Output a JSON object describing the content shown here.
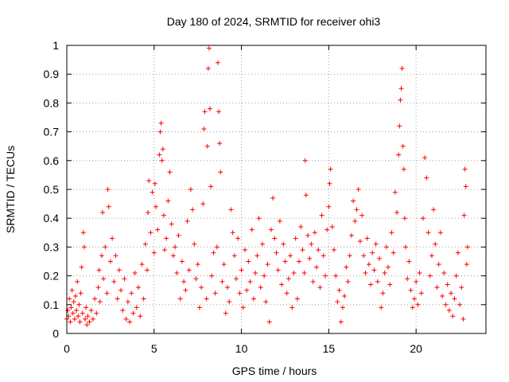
{
  "chart_data": {
    "type": "scatter",
    "title": "Day 180 of 2024, SRMTID for receiver ohi3",
    "xlabel": "GPS time / hours",
    "ylabel": "SRMTID / TECUs",
    "xlim": [
      0,
      24
    ],
    "ylim": [
      0,
      1
    ],
    "xticks": [
      0,
      5,
      10,
      15,
      20
    ],
    "xtick_labels": [
      "0",
      "5",
      "10",
      "15",
      "20"
    ],
    "yticks": [
      0,
      0.1,
      0.2,
      0.3,
      0.4,
      0.5,
      0.6,
      0.7,
      0.8,
      0.9,
      1
    ],
    "ytick_labels": [
      "0",
      "0.1",
      "0.2",
      "0.3",
      "0.4",
      "0.5",
      "0.6",
      "0.7",
      "0.8",
      "0.9",
      "1"
    ],
    "grid": true,
    "marker": "+",
    "color": "#ff0000",
    "series": [
      {
        "name": "SRMTID",
        "points": [
          [
            0.0,
            0.05
          ],
          [
            0.05,
            0.08
          ],
          [
            0.1,
            0.06
          ],
          [
            0.15,
            0.12
          ],
          [
            0.2,
            0.04
          ],
          [
            0.25,
            0.09
          ],
          [
            0.3,
            0.15
          ],
          [
            0.35,
            0.07
          ],
          [
            0.4,
            0.11
          ],
          [
            0.45,
            0.05
          ],
          [
            0.5,
            0.13
          ],
          [
            0.55,
            0.08
          ],
          [
            0.6,
            0.18
          ],
          [
            0.65,
            0.06
          ],
          [
            0.7,
            0.1
          ],
          [
            0.75,
            0.04
          ],
          [
            0.8,
            0.14
          ],
          [
            0.85,
            0.23
          ],
          [
            0.9,
            0.07
          ],
          [
            0.95,
            0.35
          ],
          [
            1.0,
            0.3
          ],
          [
            1.05,
            0.05
          ],
          [
            1.1,
            0.09
          ],
          [
            1.15,
            0.03
          ],
          [
            1.2,
            0.06
          ],
          [
            1.3,
            0.04
          ],
          [
            1.4,
            0.08
          ],
          [
            1.5,
            0.05
          ],
          [
            1.6,
            0.12
          ],
          [
            1.7,
            0.07
          ],
          [
            1.8,
            0.16
          ],
          [
            1.85,
            0.22
          ],
          [
            1.9,
            0.11
          ],
          [
            2.0,
            0.27
          ],
          [
            2.05,
            0.42
          ],
          [
            2.1,
            0.19
          ],
          [
            2.2,
            0.3
          ],
          [
            2.3,
            0.14
          ],
          [
            2.35,
            0.5
          ],
          [
            2.4,
            0.44
          ],
          [
            2.5,
            0.25
          ],
          [
            2.6,
            0.33
          ],
          [
            2.7,
            0.18
          ],
          [
            2.8,
            0.27
          ],
          [
            2.9,
            0.12
          ],
          [
            3.0,
            0.22
          ],
          [
            3.1,
            0.15
          ],
          [
            3.2,
            0.08
          ],
          [
            3.3,
            0.19
          ],
          [
            3.4,
            0.05
          ],
          [
            3.5,
            0.11
          ],
          [
            3.6,
            0.04
          ],
          [
            3.7,
            0.14
          ],
          [
            3.8,
            0.07
          ],
          [
            3.9,
            0.21
          ],
          [
            4.0,
            0.09
          ],
          [
            4.1,
            0.16
          ],
          [
            4.2,
            0.06
          ],
          [
            4.3,
            0.24
          ],
          [
            4.4,
            0.12
          ],
          [
            4.5,
            0.31
          ],
          [
            4.6,
            0.22
          ],
          [
            4.65,
            0.42
          ],
          [
            4.7,
            0.53
          ],
          [
            4.8,
            0.35
          ],
          [
            4.9,
            0.49
          ],
          [
            5.0,
            0.28
          ],
          [
            5.05,
            0.52
          ],
          [
            5.1,
            0.44
          ],
          [
            5.2,
            0.36
          ],
          [
            5.3,
            0.62
          ],
          [
            5.35,
            0.7
          ],
          [
            5.4,
            0.73
          ],
          [
            5.45,
            0.6
          ],
          [
            5.5,
            0.64
          ],
          [
            5.55,
            0.41
          ],
          [
            5.6,
            0.29
          ],
          [
            5.7,
            0.33
          ],
          [
            5.8,
            0.46
          ],
          [
            5.9,
            0.56
          ],
          [
            6.0,
            0.38
          ],
          [
            6.1,
            0.27
          ],
          [
            6.2,
            0.3
          ],
          [
            6.3,
            0.21
          ],
          [
            6.4,
            0.34
          ],
          [
            6.5,
            0.12
          ],
          [
            6.6,
            0.25
          ],
          [
            6.7,
            0.18
          ],
          [
            6.8,
            0.15
          ],
          [
            6.9,
            0.39
          ],
          [
            7.0,
            0.22
          ],
          [
            7.1,
            0.5
          ],
          [
            7.2,
            0.43
          ],
          [
            7.3,
            0.31
          ],
          [
            7.4,
            0.19
          ],
          [
            7.5,
            0.24
          ],
          [
            7.6,
            0.09
          ],
          [
            7.7,
            0.16
          ],
          [
            7.8,
            0.45
          ],
          [
            7.85,
            0.71
          ],
          [
            7.9,
            0.77
          ],
          [
            8.0,
            0.12
          ],
          [
            8.05,
            0.65
          ],
          [
            8.1,
            0.92
          ],
          [
            8.15,
            0.99
          ],
          [
            8.2,
            0.78
          ],
          [
            8.25,
            0.51
          ],
          [
            8.3,
            0.2
          ],
          [
            8.4,
            0.28
          ],
          [
            8.5,
            0.14
          ],
          [
            8.6,
            0.3
          ],
          [
            8.65,
            0.94
          ],
          [
            8.7,
            0.77
          ],
          [
            8.75,
            0.66
          ],
          [
            8.8,
            0.56
          ],
          [
            8.9,
            0.18
          ],
          [
            9.0,
            0.24
          ],
          [
            9.1,
            0.07
          ],
          [
            9.2,
            0.16
          ],
          [
            9.3,
            0.11
          ],
          [
            9.4,
            0.43
          ],
          [
            9.5,
            0.35
          ],
          [
            9.6,
            0.27
          ],
          [
            9.7,
            0.19
          ],
          [
            9.8,
            0.33
          ],
          [
            9.9,
            0.14
          ],
          [
            10.0,
            0.22
          ],
          [
            10.1,
            0.09
          ],
          [
            10.2,
            0.29
          ],
          [
            10.3,
            0.15
          ],
          [
            10.4,
            0.25
          ],
          [
            10.5,
            0.18
          ],
          [
            10.6,
            0.36
          ],
          [
            10.7,
            0.12
          ],
          [
            10.8,
            0.21
          ],
          [
            10.9,
            0.27
          ],
          [
            11.0,
            0.4
          ],
          [
            11.1,
            0.16
          ],
          [
            11.2,
            0.31
          ],
          [
            11.3,
            0.2
          ],
          [
            11.4,
            0.11
          ],
          [
            11.5,
            0.24
          ],
          [
            11.6,
            0.04
          ],
          [
            11.7,
            0.36
          ],
          [
            11.8,
            0.47
          ],
          [
            11.9,
            0.33
          ],
          [
            12.0,
            0.28
          ],
          [
            12.1,
            0.22
          ],
          [
            12.2,
            0.39
          ],
          [
            12.3,
            0.17
          ],
          [
            12.4,
            0.31
          ],
          [
            12.5,
            0.25
          ],
          [
            12.6,
            0.14
          ],
          [
            12.7,
            0.19
          ],
          [
            12.8,
            0.27
          ],
          [
            12.9,
            0.09
          ],
          [
            13.0,
            0.21
          ],
          [
            13.1,
            0.33
          ],
          [
            13.2,
            0.12
          ],
          [
            13.3,
            0.25
          ],
          [
            13.4,
            0.37
          ],
          [
            13.5,
            0.29
          ],
          [
            13.6,
            0.21
          ],
          [
            13.65,
            0.6
          ],
          [
            13.7,
            0.48
          ],
          [
            13.8,
            0.34
          ],
          [
            13.9,
            0.26
          ],
          [
            14.0,
            0.31
          ],
          [
            14.1,
            0.18
          ],
          [
            14.2,
            0.35
          ],
          [
            14.3,
            0.23
          ],
          [
            14.4,
            0.29
          ],
          [
            14.5,
            0.16
          ],
          [
            14.6,
            0.41
          ],
          [
            14.7,
            0.27
          ],
          [
            14.8,
            0.2
          ],
          [
            14.9,
            0.36
          ],
          [
            15.0,
            0.44
          ],
          [
            15.05,
            0.52
          ],
          [
            15.1,
            0.57
          ],
          [
            15.2,
            0.37
          ],
          [
            15.3,
            0.29
          ],
          [
            15.4,
            0.2
          ],
          [
            15.5,
            0.11
          ],
          [
            15.6,
            0.15
          ],
          [
            15.7,
            0.04
          ],
          [
            15.8,
            0.09
          ],
          [
            15.9,
            0.13
          ],
          [
            16.0,
            0.23
          ],
          [
            16.1,
            0.18
          ],
          [
            16.2,
            0.27
          ],
          [
            16.3,
            0.34
          ],
          [
            16.4,
            0.46
          ],
          [
            16.5,
            0.39
          ],
          [
            16.6,
            0.43
          ],
          [
            16.7,
            0.5
          ],
          [
            16.8,
            0.32
          ],
          [
            16.9,
            0.41
          ],
          [
            17.0,
            0.27
          ],
          [
            17.1,
            0.21
          ],
          [
            17.2,
            0.33
          ],
          [
            17.3,
            0.24
          ],
          [
            17.4,
            0.17
          ],
          [
            17.5,
            0.28
          ],
          [
            17.6,
            0.22
          ],
          [
            17.7,
            0.31
          ],
          [
            17.8,
            0.18
          ],
          [
            17.9,
            0.26
          ],
          [
            18.0,
            0.09
          ],
          [
            18.1,
            0.14
          ],
          [
            18.2,
            0.21
          ],
          [
            18.3,
            0.3
          ],
          [
            18.4,
            0.23
          ],
          [
            18.5,
            0.17
          ],
          [
            18.6,
            0.35
          ],
          [
            18.7,
            0.28
          ],
          [
            18.8,
            0.49
          ],
          [
            18.9,
            0.42
          ],
          [
            19.0,
            0.62
          ],
          [
            19.05,
            0.72
          ],
          [
            19.1,
            0.81
          ],
          [
            19.15,
            0.85
          ],
          [
            19.2,
            0.92
          ],
          [
            19.25,
            0.65
          ],
          [
            19.3,
            0.57
          ],
          [
            19.35,
            0.4
          ],
          [
            19.4,
            0.3
          ],
          [
            19.5,
            0.19
          ],
          [
            19.6,
            0.25
          ],
          [
            19.7,
            0.15
          ],
          [
            19.8,
            0.09
          ],
          [
            19.9,
            0.12
          ],
          [
            20.0,
            0.18
          ],
          [
            20.1,
            0.1
          ],
          [
            20.2,
            0.21
          ],
          [
            20.3,
            0.14
          ],
          [
            20.4,
            0.4
          ],
          [
            20.5,
            0.61
          ],
          [
            20.6,
            0.54
          ],
          [
            20.7,
            0.35
          ],
          [
            20.8,
            0.2
          ],
          [
            20.9,
            0.27
          ],
          [
            21.0,
            0.43
          ],
          [
            21.1,
            0.31
          ],
          [
            21.2,
            0.16
          ],
          [
            21.3,
            0.24
          ],
          [
            21.4,
            0.35
          ],
          [
            21.5,
            0.13
          ],
          [
            21.6,
            0.21
          ],
          [
            21.7,
            0.1
          ],
          [
            21.8,
            0.17
          ],
          [
            21.9,
            0.08
          ],
          [
            22.0,
            0.14
          ],
          [
            22.1,
            0.06
          ],
          [
            22.2,
            0.12
          ],
          [
            22.3,
            0.2
          ],
          [
            22.4,
            0.28
          ],
          [
            22.5,
            0.1
          ],
          [
            22.6,
            0.16
          ],
          [
            22.7,
            0.05
          ],
          [
            22.75,
            0.41
          ],
          [
            22.8,
            0.57
          ],
          [
            22.85,
            0.51
          ],
          [
            22.9,
            0.24
          ],
          [
            22.95,
            0.3
          ]
        ]
      }
    ]
  }
}
